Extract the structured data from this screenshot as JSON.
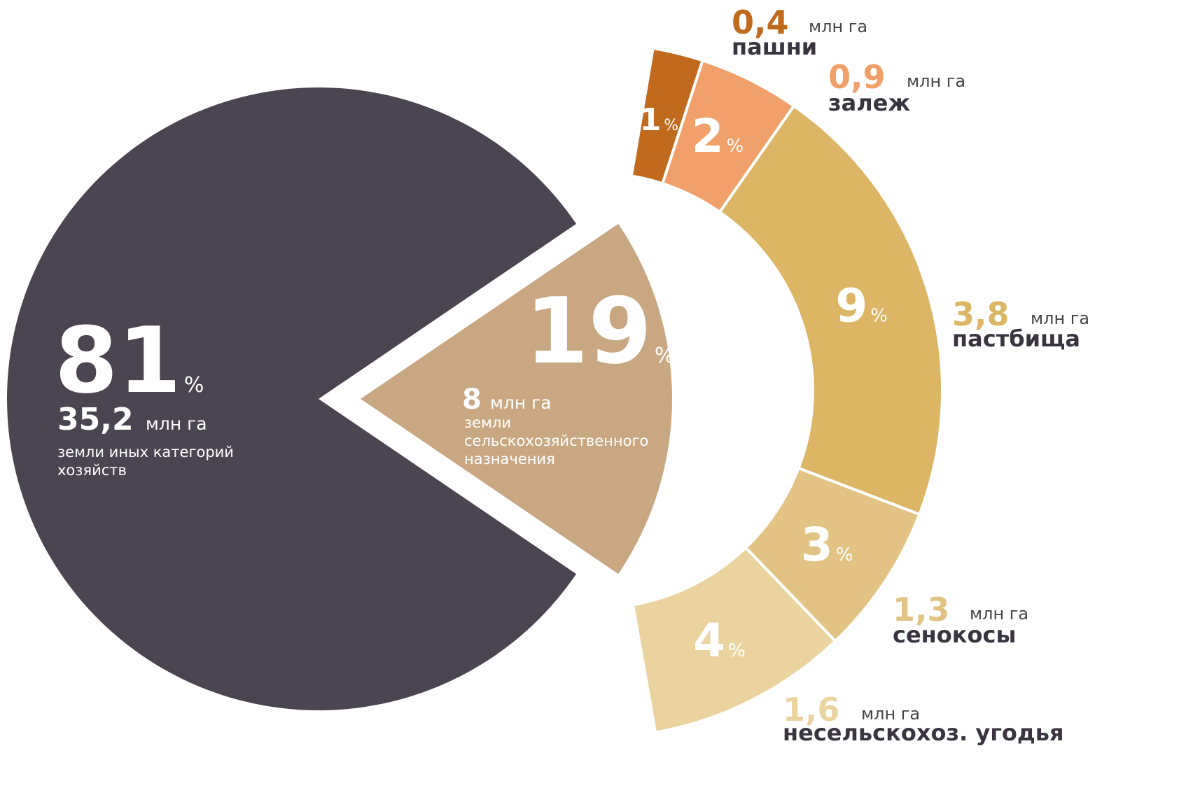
{
  "chart_data": [
    {
      "type": "pie",
      "unit": "%",
      "amount_unit": "млн га",
      "categories": [
        "земли иных категорий хозяйств",
        "земли сельскохозяйственного назначения"
      ],
      "values": [
        81,
        19
      ],
      "amounts": [
        35.2,
        8
      ],
      "amount_labels": [
        "35,2",
        "8"
      ],
      "colors": [
        "#4a4550",
        "#c9a783"
      ]
    },
    {
      "type": "ring",
      "unit": "%",
      "amount_unit": "млн га",
      "categories": [
        "пашни",
        "залеж",
        "пастбища",
        "сенокосы",
        "несельскохоз. угодья"
      ],
      "values": [
        1,
        2,
        9,
        3,
        4
      ],
      "amounts": [
        0.4,
        0.9,
        3.8,
        1.3,
        1.6
      ],
      "amount_labels": [
        "0,4",
        "0,9",
        "3,8",
        "1,3",
        "1,6"
      ],
      "colors": [
        "#c06a1e",
        "#f0a068",
        "#dcb565",
        "#e3c384",
        "#ebd3a0"
      ]
    }
  ]
}
